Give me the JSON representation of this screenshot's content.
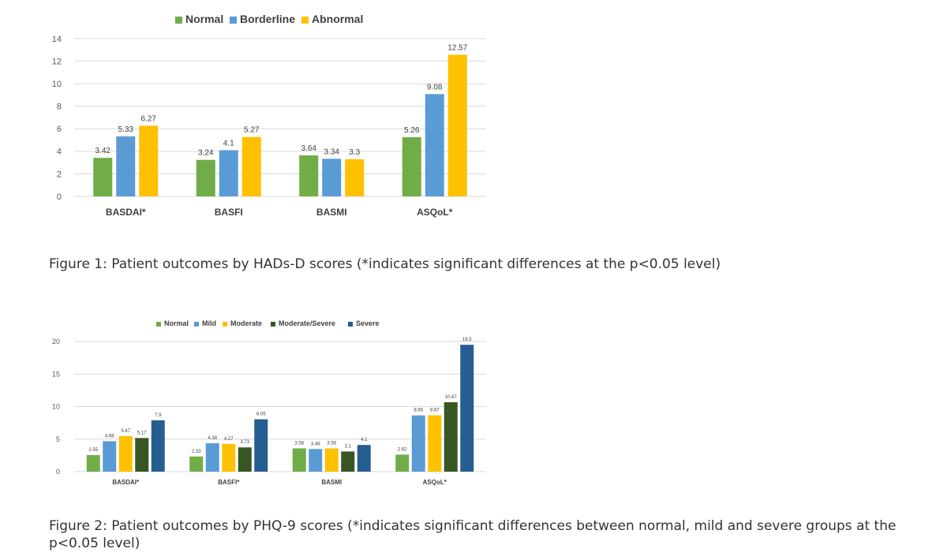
{
  "chart_data": [
    {
      "type": "bar",
      "categories": [
        "BASDAI*",
        "BASFI",
        "BASMI",
        "ASQoL*"
      ],
      "series": [
        {
          "name": "Normal",
          "color": "#70AD47",
          "values": [
            3.42,
            3.24,
            3.64,
            5.26
          ],
          "labels": [
            "3.42",
            "3.24",
            "3.64",
            "5.26"
          ]
        },
        {
          "name": "Borderline",
          "color": "#5B9BD5",
          "values": [
            5.33,
            4.1,
            3.34,
            9.08
          ],
          "labels": [
            "5.33",
            "4.1",
            "3.34",
            "9.08"
          ]
        },
        {
          "name": "Abnormal",
          "color": "#FFC000",
          "values": [
            6.27,
            5.27,
            3.3,
            12.57
          ],
          "labels": [
            "6.27",
            "5.27",
            "3.3",
            "12.57"
          ]
        }
      ],
      "ylim": [
        0,
        14
      ],
      "yticks": [
        "0",
        "2",
        "4",
        "6",
        "8",
        "10",
        "12",
        "14"
      ],
      "grid": true,
      "legend": "top"
    },
    {
      "type": "bar",
      "categories": [
        "BASDAI*",
        "BASFI*",
        "BASMI",
        "ASQoL*"
      ],
      "series": [
        {
          "name": "Normal",
          "color": "#70AD47",
          "values": [
            2.55,
            2.33,
            3.58,
            2.62
          ],
          "labels": [
            "2.55",
            "2.33",
            "3.58",
            "2.62"
          ]
        },
        {
          "name": "Mild",
          "color": "#5B9BD5",
          "values": [
            4.68,
            4.38,
            3.48,
            8.65
          ],
          "labels": [
            "4.68",
            "4.38",
            "3.48",
            "8.65"
          ]
        },
        {
          "name": "Moderate",
          "color": "#FFC000",
          "values": [
            5.47,
            4.27,
            3.56,
            8.67
          ],
          "labels": [
            "5.47",
            "4.27",
            "3.56",
            "8.67"
          ]
        },
        {
          "name": "Moderate/Severe",
          "color": "#375623",
          "values": [
            5.17,
            3.73,
            3.1,
            10.67
          ],
          "labels": [
            "5.17",
            "3.73",
            "3.1",
            "10.67"
          ]
        },
        {
          "name": "Severe",
          "color": "#255E91",
          "values": [
            7.9,
            8.05,
            4.1,
            19.5
          ],
          "labels": [
            "7.9",
            "8.05",
            "4.1",
            "19.5"
          ]
        }
      ],
      "ylim": [
        0,
        20
      ],
      "yticks": [
        "0",
        "5",
        "10",
        "15",
        "20"
      ],
      "grid": true,
      "legend": "top"
    }
  ],
  "captions": {
    "figure1": "Figure 1: Patient outcomes by HADs-D scores (*indicates significant differences at the p<0.05 level)",
    "figure2": "Figure 2: Patient outcomes by PHQ-9 scores (*indicates significant differences between normal, mild and severe groups at the p<0.05 level)"
  }
}
